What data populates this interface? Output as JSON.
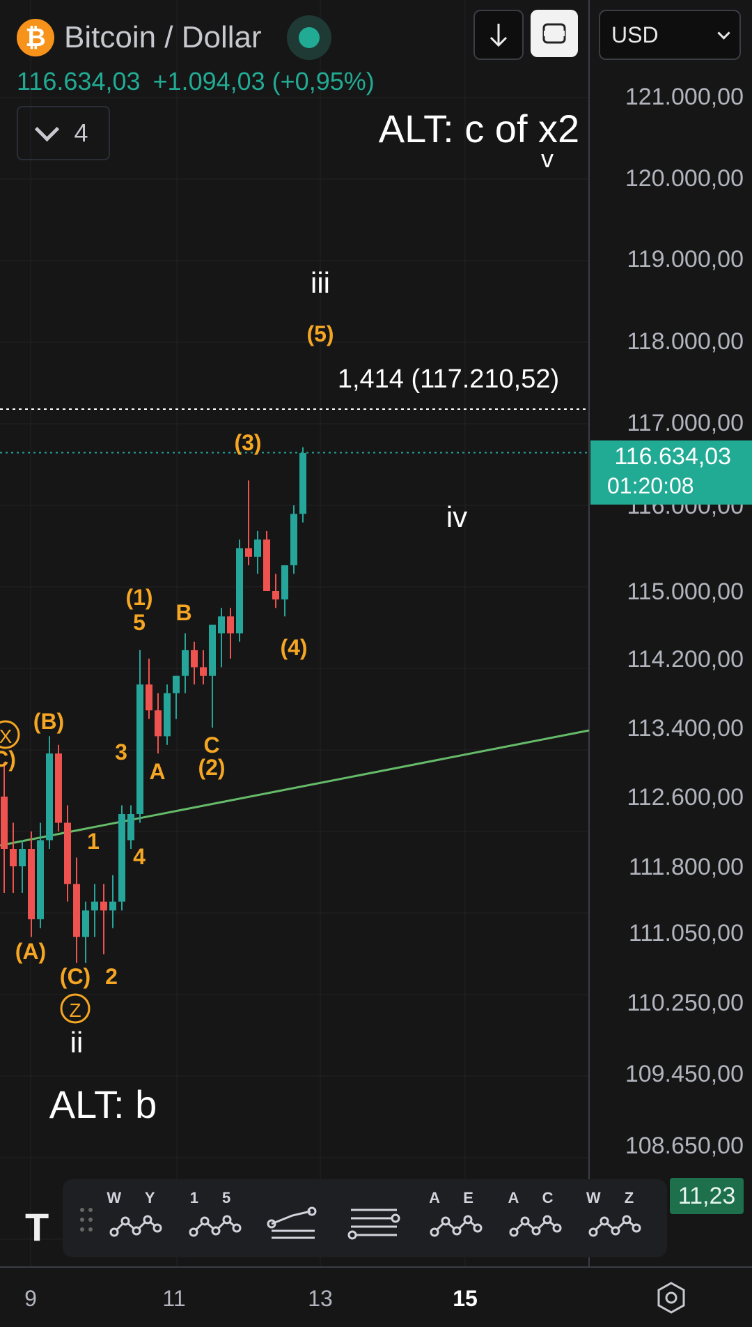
{
  "header": {
    "symbol_icon": "₿",
    "title": "Bitcoin / Dollar",
    "price": "116.634,03",
    "change": "+1.094,03 (+0,95%)",
    "collapse_count": "4",
    "currency": "USD"
  },
  "colors": {
    "background": "#161616",
    "bull": "#26a69a",
    "bear": "#ef5350",
    "wave_orange": "#f5a623",
    "trendline": "#66bb6a",
    "price_badge": "#22ab94"
  },
  "chart_data": {
    "type": "candlestick",
    "y_ticks": [
      "121.000,00",
      "120.000,00",
      "119.000,00",
      "118.000,00",
      "117.000,00",
      "116.000,00",
      "115.000,00",
      "114.200,00",
      "113.400,00",
      "112.600,00",
      "111.800,00",
      "111.050,00",
      "110.250,00",
      "109.450,00",
      "108.650,00"
    ],
    "x_ticks": [
      "9",
      "11",
      "13",
      "15"
    ],
    "last_price_label": "116.634,03",
    "countdown_label": "01:20:08",
    "partial_label": "11,23",
    "fib_label": "1,414 (117.210,52)",
    "wave_labels_white": {
      "alt_c": "ALT: c of x2",
      "v": "v",
      "iii": "iii",
      "iv": "iv",
      "ii": "ii",
      "alt_b": "ALT: b"
    },
    "wave_labels_orange": {
      "w5": "(5)",
      "w3": "(3)",
      "w1": "(1)",
      "w5s": "5",
      "B": "B",
      "w4": "(4)",
      "Bp": "(B)",
      "X": "X",
      "Cp_left": "C)",
      "C": "C",
      "w2": "(2)",
      "n3": "3",
      "A": "A",
      "n1": "1",
      "n4": "4",
      "Ap": "(A)",
      "Cp": "(C)",
      "n2": "2",
      "Z": "Z"
    },
    "candles": [
      {
        "o": 112.6,
        "h": 113.0,
        "l": 111.5,
        "c": 112.0
      },
      {
        "o": 112.0,
        "h": 112.3,
        "l": 111.5,
        "c": 111.8
      },
      {
        "o": 111.8,
        "h": 112.1,
        "l": 111.5,
        "c": 112.0
      },
      {
        "o": 112.0,
        "h": 112.2,
        "l": 111.0,
        "c": 111.2
      },
      {
        "o": 111.2,
        "h": 112.3,
        "l": 111.1,
        "c": 112.1
      },
      {
        "o": 112.1,
        "h": 113.3,
        "l": 112.0,
        "c": 113.1
      },
      {
        "o": 113.1,
        "h": 113.2,
        "l": 112.2,
        "c": 112.3
      },
      {
        "o": 112.3,
        "h": 112.5,
        "l": 111.4,
        "c": 111.6
      },
      {
        "o": 111.6,
        "h": 111.9,
        "l": 110.7,
        "c": 111.0
      },
      {
        "o": 111.0,
        "h": 111.4,
        "l": 110.7,
        "c": 111.3
      },
      {
        "o": 111.3,
        "h": 111.6,
        "l": 111.0,
        "c": 111.4
      },
      {
        "o": 111.4,
        "h": 111.6,
        "l": 110.8,
        "c": 111.3
      },
      {
        "o": 111.3,
        "h": 111.7,
        "l": 111.1,
        "c": 111.4
      },
      {
        "o": 111.4,
        "h": 112.5,
        "l": 111.3,
        "c": 112.4
      },
      {
        "o": 112.1,
        "h": 112.5,
        "l": 112.0,
        "c": 112.4
      },
      {
        "o": 112.4,
        "h": 114.3,
        "l": 112.3,
        "c": 113.9
      },
      {
        "o": 113.9,
        "h": 114.2,
        "l": 113.5,
        "c": 113.6
      },
      {
        "o": 113.6,
        "h": 113.8,
        "l": 113.1,
        "c": 113.3
      },
      {
        "o": 113.3,
        "h": 113.9,
        "l": 113.2,
        "c": 113.8
      },
      {
        "o": 113.8,
        "h": 114.0,
        "l": 113.5,
        "c": 114.0
      },
      {
        "o": 114.0,
        "h": 114.5,
        "l": 113.8,
        "c": 114.3
      },
      {
        "o": 114.3,
        "h": 114.4,
        "l": 113.9,
        "c": 114.1
      },
      {
        "o": 114.1,
        "h": 114.3,
        "l": 113.9,
        "c": 114.0
      },
      {
        "o": 114.0,
        "h": 114.6,
        "l": 113.4,
        "c": 114.6
      },
      {
        "o": 114.5,
        "h": 114.8,
        "l": 114.1,
        "c": 114.7
      },
      {
        "o": 114.7,
        "h": 114.8,
        "l": 114.2,
        "c": 114.5
      },
      {
        "o": 114.5,
        "h": 115.6,
        "l": 114.4,
        "c": 115.5
      },
      {
        "o": 115.5,
        "h": 116.3,
        "l": 115.3,
        "c": 115.4
      },
      {
        "o": 115.4,
        "h": 115.7,
        "l": 115.2,
        "c": 115.6
      },
      {
        "o": 115.6,
        "h": 115.7,
        "l": 115.0,
        "c": 115.0
      },
      {
        "o": 115.0,
        "h": 115.2,
        "l": 114.8,
        "c": 114.9
      },
      {
        "o": 114.9,
        "h": 115.3,
        "l": 114.7,
        "c": 115.3
      },
      {
        "o": 115.3,
        "h": 116.0,
        "l": 115.2,
        "c": 115.9
      },
      {
        "o": 115.9,
        "h": 116.7,
        "l": 115.8,
        "c": 116.63
      }
    ]
  },
  "toolbar": {
    "tools": [
      {
        "name": "wxy-tool",
        "letters": "W Y"
      },
      {
        "name": "impulse-tool",
        "letters": "1 5"
      },
      {
        "name": "pitchfork-tool",
        "letters": ""
      },
      {
        "name": "fib-tool",
        "letters": ""
      },
      {
        "name": "triangle-tool",
        "letters": "A E"
      },
      {
        "name": "abc-tool",
        "letters": "A C"
      },
      {
        "name": "wxyxz-tool",
        "letters": "W Z"
      }
    ]
  }
}
